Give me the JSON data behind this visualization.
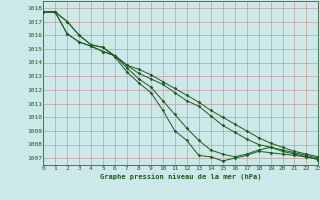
{
  "title": "Graphe pression niveau de la mer (hPa)",
  "background_color": "#cce8e8",
  "grid_color": "#cc9999",
  "line_color": "#1a5c1a",
  "spine_color": "#336633",
  "xlim": [
    0,
    23
  ],
  "ylim": [
    1006.5,
    1018.5
  ],
  "yticks": [
    1007,
    1008,
    1009,
    1010,
    1011,
    1012,
    1013,
    1014,
    1015,
    1016,
    1017,
    1018
  ],
  "xticks": [
    0,
    1,
    2,
    3,
    4,
    5,
    6,
    7,
    8,
    9,
    10,
    11,
    12,
    13,
    14,
    15,
    16,
    17,
    18,
    19,
    20,
    21,
    22,
    23
  ],
  "series": [
    [
      1017.7,
      1017.7,
      1017.0,
      1016.0,
      1015.3,
      1015.1,
      1014.4,
      1013.3,
      1012.5,
      1011.8,
      1010.5,
      1009.0,
      1008.3,
      1007.2,
      1007.1,
      1006.8,
      1007.0,
      1007.2,
      1007.5,
      1007.4,
      1007.3,
      1007.2,
      1007.1,
      1006.9
    ],
    [
      1017.7,
      1017.7,
      1017.0,
      1016.0,
      1015.3,
      1015.1,
      1014.5,
      1013.6,
      1012.8,
      1012.2,
      1011.2,
      1010.2,
      1009.2,
      1008.3,
      1007.6,
      1007.3,
      1007.1,
      1007.3,
      1007.6,
      1007.8,
      1007.6,
      1007.4,
      1007.2,
      1007.0
    ],
    [
      1017.7,
      1017.7,
      1016.1,
      1015.5,
      1015.2,
      1014.8,
      1014.5,
      1013.8,
      1013.2,
      1012.8,
      1012.4,
      1011.8,
      1011.2,
      1010.8,
      1010.1,
      1009.4,
      1008.9,
      1008.4,
      1008.0,
      1007.8,
      1007.5,
      1007.3,
      1007.1,
      1006.9
    ],
    [
      1017.7,
      1017.7,
      1016.1,
      1015.5,
      1015.2,
      1014.8,
      1014.5,
      1013.8,
      1013.5,
      1013.1,
      1012.6,
      1012.1,
      1011.6,
      1011.1,
      1010.5,
      1010.0,
      1009.5,
      1009.0,
      1008.5,
      1008.1,
      1007.8,
      1007.5,
      1007.3,
      1007.1
    ]
  ]
}
